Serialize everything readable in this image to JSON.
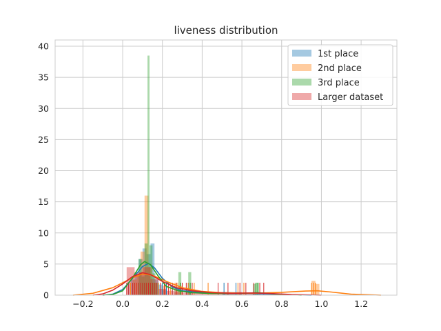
{
  "chart_data": {
    "type": "histogram",
    "title": "liveness distribution",
    "xlabel": "",
    "ylabel": "",
    "xlim": [
      -0.34,
      1.38
    ],
    "ylim": [
      0,
      41
    ],
    "xticks": [
      -0.2,
      0.0,
      0.2,
      0.4,
      0.6,
      0.8,
      1.0,
      1.2
    ],
    "xtick_labels": [
      "−0.2",
      "0.0",
      "0.2",
      "0.4",
      "0.6",
      "0.8",
      "1.0",
      "1.2"
    ],
    "yticks": [
      0,
      5,
      10,
      15,
      20,
      25,
      30,
      35,
      40
    ],
    "ytick_labels": [
      "0",
      "5",
      "10",
      "15",
      "20",
      "25",
      "30",
      "35",
      "40"
    ],
    "grid": true,
    "legend_position": "top-right",
    "series": [
      {
        "name": "1st place",
        "color": "#1f77b4",
        "bins": [
          [
            0.04,
            0.06,
            2.5
          ],
          [
            0.06,
            0.08,
            3.3
          ],
          [
            0.08,
            0.1,
            5.8
          ],
          [
            0.1,
            0.12,
            7.5
          ],
          [
            0.12,
            0.14,
            6.6
          ],
          [
            0.14,
            0.16,
            8.3
          ],
          [
            0.16,
            0.18,
            2.5
          ],
          [
            0.18,
            0.2,
            1.7
          ],
          [
            0.2,
            0.22,
            0.8
          ],
          [
            0.26,
            0.28,
            0.8
          ],
          [
            0.32,
            0.34,
            0.8
          ],
          [
            0.5,
            0.6,
            0.5
          ]
        ],
        "kde": [
          [
            -0.1,
            0.0
          ],
          [
            -0.05,
            0.15
          ],
          [
            0.0,
            0.9
          ],
          [
            0.05,
            2.7
          ],
          [
            0.1,
            4.6
          ],
          [
            0.13,
            5.1
          ],
          [
            0.16,
            4.4
          ],
          [
            0.2,
            2.7
          ],
          [
            0.25,
            1.3
          ],
          [
            0.3,
            0.7
          ],
          [
            0.4,
            0.45
          ],
          [
            0.55,
            0.35
          ],
          [
            0.7,
            0.2
          ],
          [
            0.85,
            0.05
          ],
          [
            0.95,
            0.0
          ]
        ],
        "rug": [
          0.03,
          0.05,
          0.06,
          0.08,
          0.09,
          0.1,
          0.11,
          0.12,
          0.13,
          0.14,
          0.15,
          0.16,
          0.18,
          0.2,
          0.22,
          0.25,
          0.29,
          0.33,
          0.51,
          0.57
        ]
      },
      {
        "name": "2nd place",
        "color": "#ff7f0e",
        "bins": [
          [
            0.05,
            0.07,
            2.5
          ],
          [
            0.07,
            0.09,
            3.2
          ],
          [
            0.09,
            0.11,
            7.0
          ],
          [
            0.11,
            0.13,
            16.0
          ],
          [
            0.13,
            0.15,
            4.5
          ],
          [
            0.15,
            0.17,
            2.0
          ],
          [
            0.2,
            0.22,
            1.5
          ],
          [
            0.26,
            0.28,
            2.0
          ],
          [
            0.28,
            0.3,
            1.5
          ],
          [
            0.95,
            0.97,
            2.3
          ],
          [
            0.97,
            0.99,
            1.8
          ]
        ],
        "kde": [
          [
            -0.25,
            0.0
          ],
          [
            -0.15,
            0.3
          ],
          [
            -0.05,
            1.2
          ],
          [
            0.05,
            2.8
          ],
          [
            0.1,
            3.4
          ],
          [
            0.15,
            3.2
          ],
          [
            0.22,
            2.2
          ],
          [
            0.3,
            1.2
          ],
          [
            0.4,
            0.6
          ],
          [
            0.5,
            0.4
          ],
          [
            0.65,
            0.3
          ],
          [
            0.8,
            0.45
          ],
          [
            0.92,
            0.65
          ],
          [
            0.98,
            0.7
          ],
          [
            1.05,
            0.5
          ],
          [
            1.15,
            0.15
          ],
          [
            1.3,
            0.0
          ]
        ],
        "rug": [
          0.04,
          0.06,
          0.07,
          0.08,
          0.1,
          0.11,
          0.12,
          0.12,
          0.13,
          0.14,
          0.16,
          0.18,
          0.21,
          0.24,
          0.27,
          0.29,
          0.33,
          0.36,
          0.43,
          0.58,
          0.61,
          0.95,
          0.96,
          0.97
        ]
      },
      {
        "name": "3rd place",
        "color": "#2ca02c",
        "bins": [
          [
            0.08,
            0.095,
            5.8
          ],
          [
            0.095,
            0.11,
            3.0
          ],
          [
            0.11,
            0.125,
            8.3
          ],
          [
            0.125,
            0.135,
            38.5
          ],
          [
            0.135,
            0.15,
            8.0
          ],
          [
            0.15,
            0.165,
            3.5
          ],
          [
            0.165,
            0.18,
            2.0
          ],
          [
            0.28,
            0.295,
            3.7
          ],
          [
            0.33,
            0.345,
            3.7
          ],
          [
            0.655,
            0.67,
            1.8
          ],
          [
            0.67,
            0.685,
            2.0
          ]
        ],
        "kde": [
          [
            -0.1,
            0.0
          ],
          [
            -0.05,
            0.1
          ],
          [
            0.0,
            0.7
          ],
          [
            0.05,
            2.8
          ],
          [
            0.09,
            4.9
          ],
          [
            0.11,
            5.4
          ],
          [
            0.14,
            4.9
          ],
          [
            0.18,
            3.0
          ],
          [
            0.22,
            1.4
          ],
          [
            0.28,
            0.7
          ],
          [
            0.35,
            0.4
          ],
          [
            0.45,
            0.25
          ],
          [
            0.6,
            0.3
          ],
          [
            0.68,
            0.4
          ],
          [
            0.78,
            0.15
          ],
          [
            0.9,
            0.0
          ]
        ],
        "rug": [
          0.08,
          0.09,
          0.1,
          0.11,
          0.12,
          0.13,
          0.13,
          0.14,
          0.15,
          0.16,
          0.17,
          0.29,
          0.34,
          0.67,
          0.68
        ]
      },
      {
        "name": "Larger dataset",
        "color": "#d62728",
        "bins": [
          [
            0.02,
            0.06,
            4.5
          ],
          [
            0.06,
            0.1,
            3.7
          ],
          [
            0.1,
            0.14,
            4.5
          ],
          [
            0.14,
            0.18,
            2.6
          ],
          [
            0.18,
            0.22,
            1.0
          ],
          [
            0.22,
            0.26,
            0.7
          ],
          [
            0.26,
            0.3,
            0.5
          ],
          [
            0.3,
            0.34,
            0.4
          ],
          [
            0.34,
            0.38,
            0.4
          ],
          [
            0.38,
            0.5,
            0.3
          ],
          [
            0.5,
            0.7,
            0.4
          ],
          [
            0.7,
            0.9,
            0.15
          ]
        ],
        "kde": [
          [
            -0.15,
            0.0
          ],
          [
            -0.1,
            0.2
          ],
          [
            -0.05,
            0.8
          ],
          [
            0.0,
            1.8
          ],
          [
            0.05,
            3.0
          ],
          [
            0.1,
            3.6
          ],
          [
            0.14,
            3.3
          ],
          [
            0.2,
            2.2
          ],
          [
            0.27,
            1.2
          ],
          [
            0.35,
            0.7
          ],
          [
            0.45,
            0.4
          ],
          [
            0.55,
            0.3
          ],
          [
            0.65,
            0.35
          ],
          [
            0.72,
            0.3
          ],
          [
            0.85,
            0.1
          ],
          [
            1.0,
            0.0
          ]
        ],
        "rug": [
          0.02,
          0.03,
          0.05,
          0.06,
          0.07,
          0.08,
          0.09,
          0.1,
          0.11,
          0.12,
          0.13,
          0.14,
          0.15,
          0.16,
          0.17,
          0.19,
          0.21,
          0.23,
          0.25,
          0.27,
          0.3,
          0.32,
          0.35,
          0.48,
          0.53,
          0.59,
          0.62,
          0.66,
          0.69,
          0.71
        ]
      }
    ]
  }
}
